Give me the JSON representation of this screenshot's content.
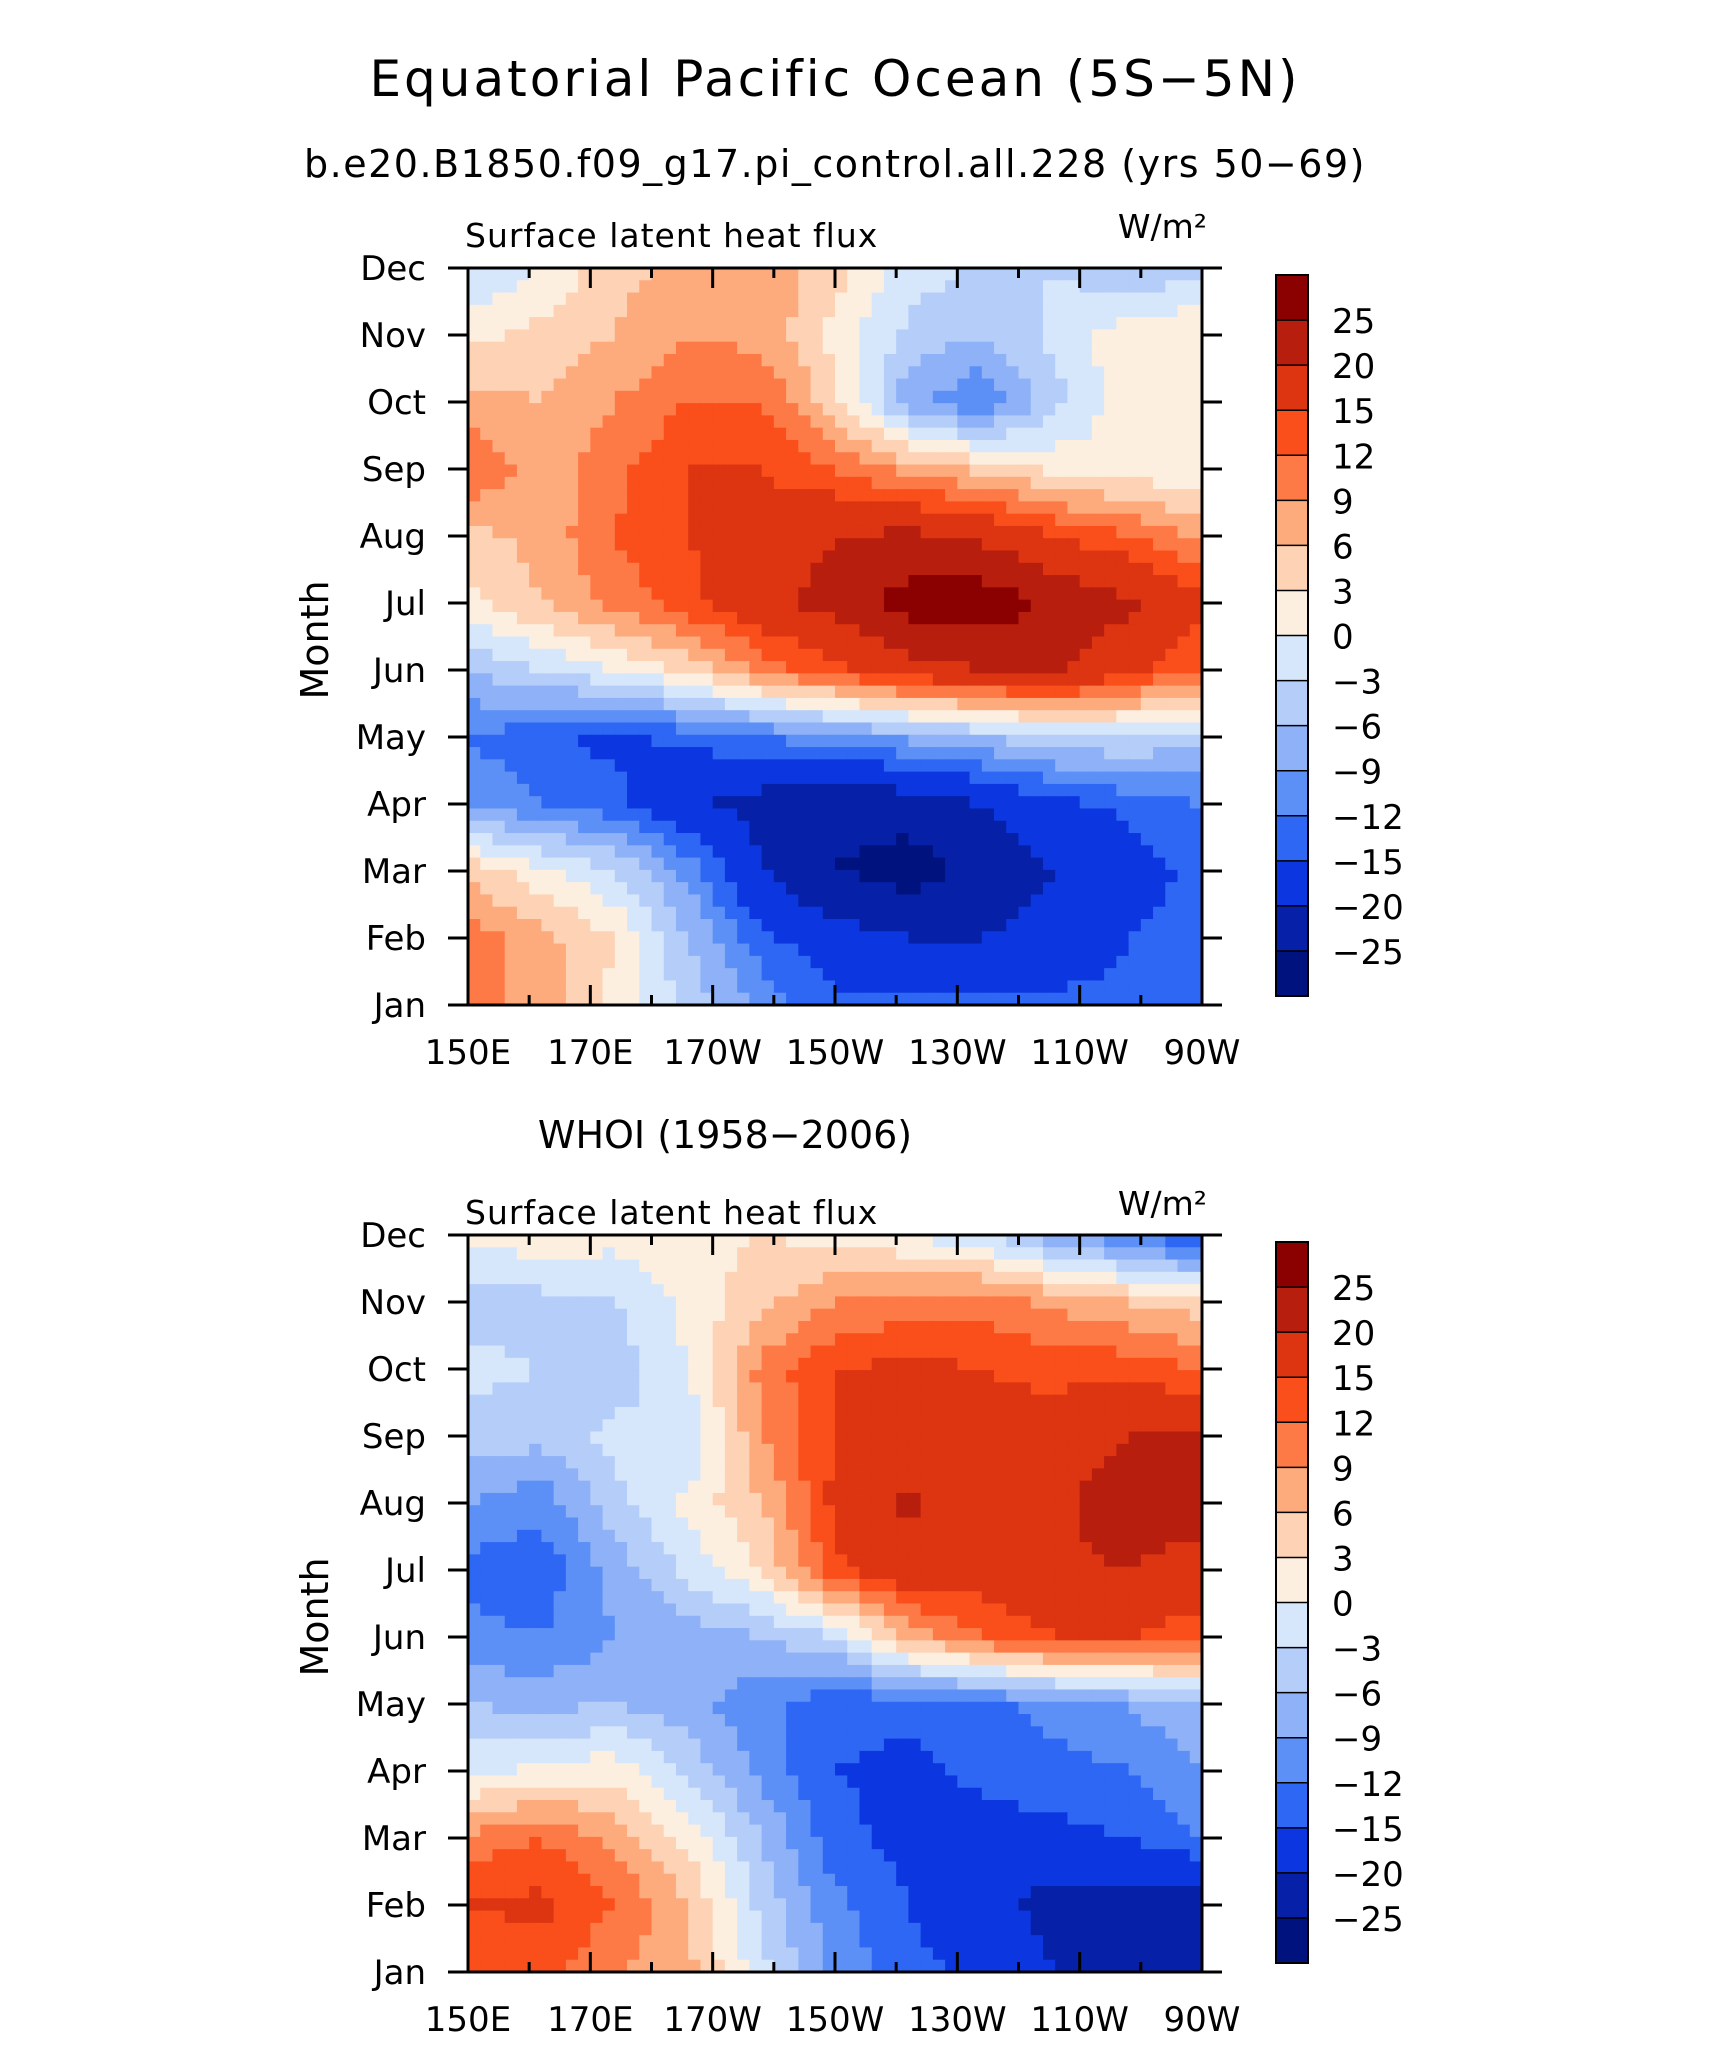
{
  "title": "Equatorial Pacific Ocean (5S−5N)",
  "subtitle": "b.e20.B1850.f09_g17.pi_control.all.228 (yrs 50−69)",
  "colorbar": {
    "levels": [
      "25",
      "20",
      "15",
      "12",
      "9",
      "6",
      "3",
      "0",
      "−3",
      "−6",
      "−9",
      "−12",
      "−15",
      "−20",
      "−25"
    ],
    "colors": [
      "#8b0000",
      "#b81e0d",
      "#dd3411",
      "#fa4f1b",
      "#fd7a46",
      "#fdaa7c",
      "#fdd2b5",
      "#fdefe0",
      "#d7e7fb",
      "#b5cdf9",
      "#8eb1f7",
      "#5d90f6",
      "#2e67f4",
      "#0c37e0",
      "#0621a8",
      "#00127e"
    ]
  },
  "chart_data": [
    {
      "type": "heatmap",
      "panel_title": "",
      "left_label": "Surface latent heat flux",
      "units": "W/m²",
      "ylabel": "Month",
      "x_ticks": [
        "150E",
        "170E",
        "170W",
        "150W",
        "130W",
        "110W",
        "90W"
      ],
      "x_values": [
        150,
        170,
        190,
        210,
        230,
        250,
        270
      ],
      "y_ticks": [
        "Jan",
        "Feb",
        "Mar",
        "Apr",
        "May",
        "Jun",
        "Jul",
        "Aug",
        "Sep",
        "Oct",
        "Nov",
        "Dec"
      ],
      "xlim": [
        150,
        270
      ],
      "grid": [
        [
          10,
          8,
          2,
          -4,
          -10,
          -14,
          -14,
          -14,
          -14,
          -14,
          -13
        ],
        [
          11,
          7,
          3,
          -6,
          -14,
          -18,
          -20,
          -20,
          -18,
          -15,
          -13
        ],
        [
          5,
          1,
          -3,
          -10,
          -20,
          -25,
          -27,
          -24,
          -20,
          -17,
          -14
        ],
        [
          -10,
          -12,
          -14,
          -19,
          -22,
          -24,
          -23,
          -20,
          -16,
          -14,
          -12
        ],
        [
          -12,
          -14,
          -16,
          -14,
          -12,
          -10,
          -8,
          -6,
          -4,
          -3,
          -5
        ],
        [
          -6,
          -3,
          0,
          4,
          10,
          14,
          18,
          20,
          21,
          16,
          12
        ],
        [
          2,
          6,
          10,
          14,
          18,
          22,
          27,
          28,
          24,
          21,
          16
        ],
        [
          5,
          7,
          12,
          15,
          17,
          20,
          21,
          19,
          15,
          12,
          8
        ],
        [
          12,
          7,
          11,
          15,
          15,
          12,
          8,
          5,
          2,
          1,
          1
        ],
        [
          7,
          6,
          9,
          12,
          12,
          4,
          -8,
          -12,
          -4,
          2,
          3
        ],
        [
          2,
          4,
          6,
          9,
          8,
          2,
          -4,
          -6,
          -2,
          2,
          3
        ],
        [
          -3,
          0,
          5,
          7,
          9,
          4,
          -1,
          -4,
          -3,
          -6,
          -4
        ]
      ]
    },
    {
      "type": "heatmap",
      "panel_title": "WHOI (1958−2006)",
      "left_label": "Surface latent heat flux",
      "units": "W/m²",
      "ylabel": "Month",
      "x_ticks": [
        "150E",
        "170E",
        "170W",
        "150W",
        "130W",
        "110W",
        "90W"
      ],
      "x_values": [
        150,
        170,
        190,
        210,
        230,
        250,
        270
      ],
      "y_ticks": [
        "Jan",
        "Feb",
        "Mar",
        "Apr",
        "May",
        "Jun",
        "Jul",
        "Aug",
        "Sep",
        "Oct",
        "Nov",
        "Dec"
      ],
      "xlim": [
        150,
        270
      ],
      "grid": [
        [
          12,
          13,
          9,
          7,
          -2,
          -10,
          -14,
          -16,
          -20,
          -22,
          -24
        ],
        [
          15,
          16,
          12,
          6,
          -4,
          -11,
          -15,
          -18,
          -22,
          -23,
          -22
        ],
        [
          10,
          12,
          8,
          2,
          -6,
          -14,
          -16,
          -17,
          -16,
          -15,
          -12
        ],
        [
          -1,
          1,
          2,
          -4,
          -10,
          -15,
          -16,
          -14,
          -13,
          -12,
          -9
        ],
        [
          -6,
          -7,
          -6,
          -8,
          -11,
          -14,
          -14,
          -13,
          -11,
          -9,
          -6
        ],
        [
          -11,
          -12,
          -9,
          -8,
          -6,
          -3,
          7,
          12,
          15,
          15,
          13
        ],
        [
          -13,
          -14,
          -8,
          -2,
          3,
          14,
          18,
          17,
          19,
          20,
          18
        ],
        [
          -9,
          -11,
          -4,
          1,
          6,
          16,
          21,
          15,
          19,
          23,
          22
        ],
        [
          -4,
          -5,
          -2,
          -3,
          9,
          15,
          18,
          16,
          17,
          20,
          20
        ],
        [
          -2,
          -3,
          -5,
          0,
          10,
          15,
          16,
          15,
          14,
          14,
          12
        ],
        [
          -5,
          -4,
          -3,
          1,
          5,
          9,
          10,
          11,
          8,
          6,
          4
        ],
        [
          1,
          2,
          1,
          2,
          3,
          2,
          0,
          -3,
          -8,
          -12,
          -16
        ]
      ]
    }
  ]
}
